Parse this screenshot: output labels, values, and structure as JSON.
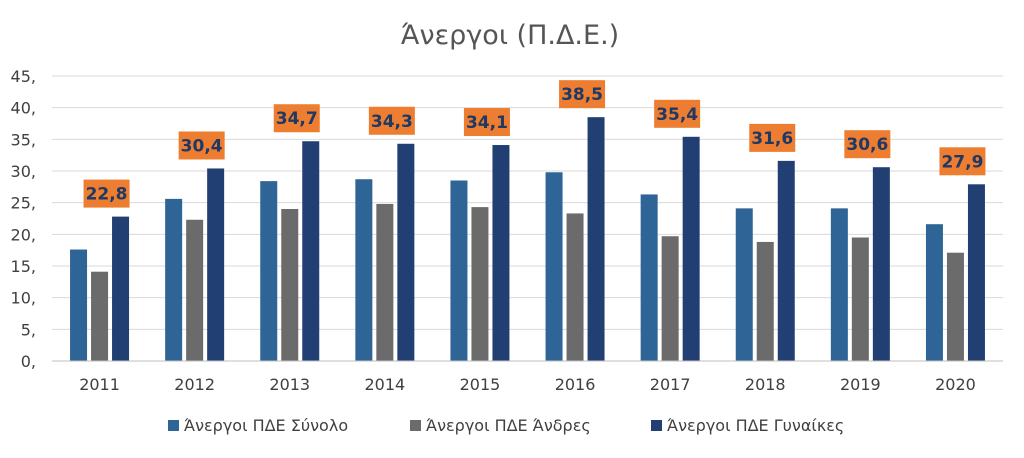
{
  "chart_data": {
    "type": "bar",
    "title": "Άνεργοι (Π.Δ.Ε.)",
    "xlabel": "",
    "ylabel": "",
    "ylim": [
      0,
      45
    ],
    "yticks": [
      "0,",
      "5,",
      "10,",
      "15,",
      "20,",
      "25,",
      "30,",
      "35,",
      "40,",
      "45,"
    ],
    "grid": true,
    "legend_position": "bottom",
    "categories": [
      "2011",
      "2012",
      "2013",
      "2014",
      "2015",
      "2016",
      "2017",
      "2018",
      "2019",
      "2020"
    ],
    "series": [
      {
        "name": "Άνεργοι ΠΔΕ Σύνολο",
        "color": "#2e6496",
        "values": [
          17.6,
          25.6,
          28.4,
          28.7,
          28.5,
          29.8,
          26.3,
          24.1,
          24.1,
          21.6
        ]
      },
      {
        "name": "Άνεργοι ΠΔΕ Άνδρες",
        "color": "#6b6b6b",
        "values": [
          14.1,
          22.3,
          24.0,
          24.8,
          24.3,
          23.3,
          19.7,
          18.8,
          19.5,
          17.1
        ]
      },
      {
        "name": "Άνεργοι ΠΔΕ Γυναίκες",
        "color": "#223f74",
        "values": [
          22.8,
          30.4,
          34.7,
          34.3,
          34.1,
          38.5,
          35.4,
          31.6,
          30.6,
          27.9
        ]
      }
    ],
    "data_labels": {
      "series_index": 2,
      "texts": [
        "22,8",
        "30,4",
        "34,7",
        "34,3",
        "34,1",
        "38,5",
        "35,4",
        "31,6",
        "30,6",
        "27,9"
      ],
      "box_color": "#ed7d31",
      "text_color": "#1f3864"
    },
    "axis_color": "#bfbfbf",
    "grid_color": "#d9d9d9"
  }
}
